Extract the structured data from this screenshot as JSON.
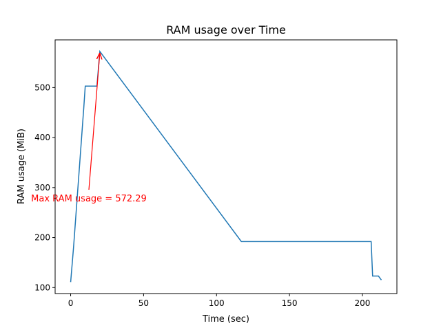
{
  "chart_data": {
    "type": "line",
    "title": "RAM usage over Time",
    "x_label": "Time (sec)",
    "y_label": "RAM usage (MiB)",
    "annotation": "Max RAM usage = 572.29",
    "annotation_color": "#ff0000",
    "x": [
      0,
      2,
      9,
      10,
      18,
      20,
      117,
      206,
      207,
      211,
      213
    ],
    "series": [
      {
        "name": "RAM usage",
        "color": "#1f77b4",
        "values": [
          111,
          181,
          460,
          503,
          503,
          572.29,
          192,
          192,
          123,
          123,
          115
        ]
      }
    ],
    "xlim": [
      -10.65,
      223.65
    ],
    "ylim": [
      88,
      595.4
    ],
    "xticks": [
      0,
      50,
      100,
      150,
      200
    ],
    "yticks": [
      100,
      200,
      300,
      400,
      500
    ]
  }
}
